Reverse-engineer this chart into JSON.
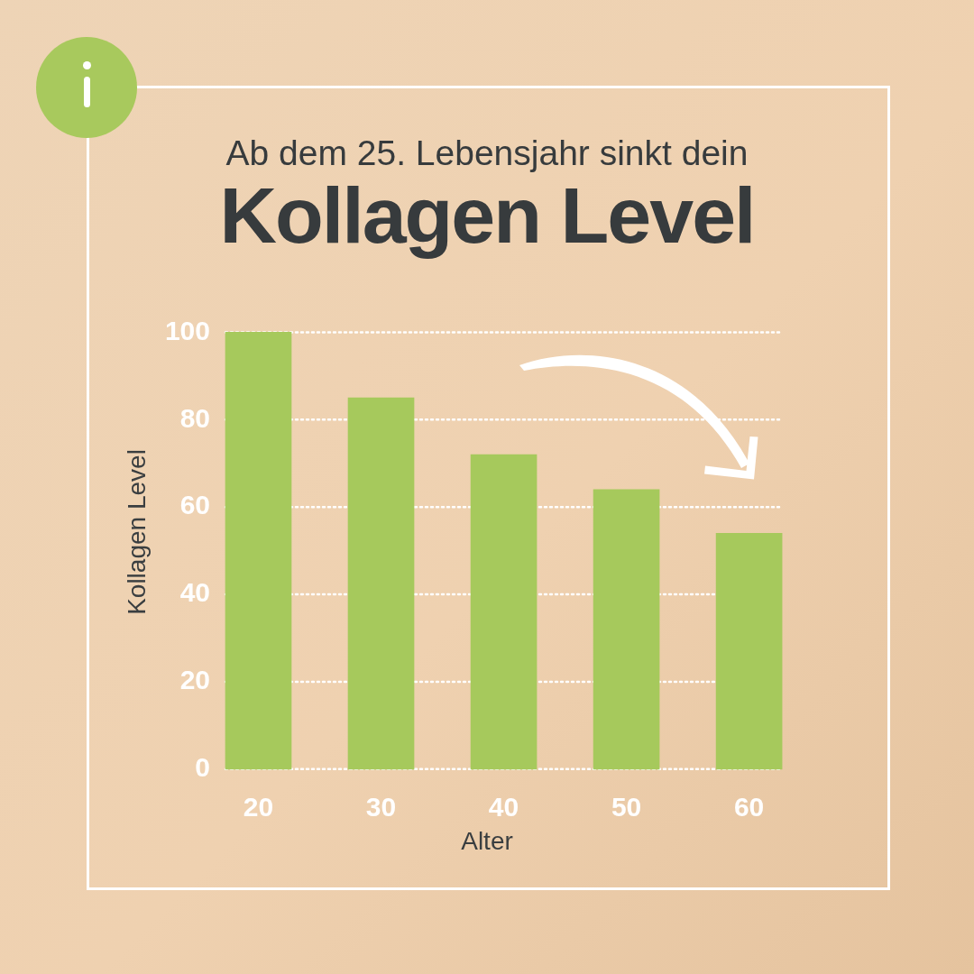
{
  "chart_data": {
    "type": "bar",
    "title": "Ab dem 25. Lebensjahr sinkt dein",
    "subtitle": "Kollagen Level",
    "xlabel": "Alter",
    "ylabel": "Kollagen Level",
    "categories": [
      "20",
      "30",
      "40",
      "50",
      "60"
    ],
    "values": [
      100,
      85,
      72,
      64,
      54
    ],
    "color": "#a6c95c",
    "ylim": [
      0,
      100
    ],
    "yticks": [
      0,
      20,
      40,
      60,
      80,
      100
    ],
    "grid": "y"
  }
}
